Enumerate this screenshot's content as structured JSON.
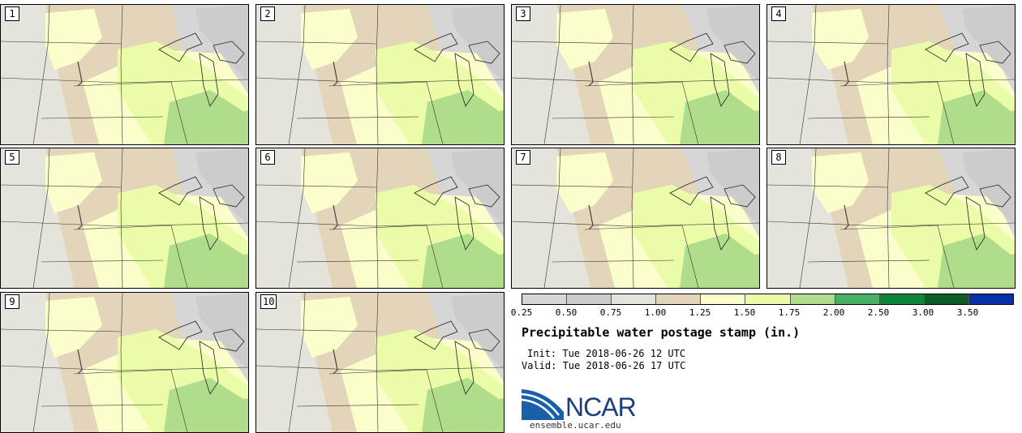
{
  "panels": [
    {
      "label": "1"
    },
    {
      "label": "2"
    },
    {
      "label": "3"
    },
    {
      "label": "4"
    },
    {
      "label": "5"
    },
    {
      "label": "6"
    },
    {
      "label": "7"
    },
    {
      "label": "8"
    },
    {
      "label": "9"
    },
    {
      "label": "10"
    }
  ],
  "legend": {
    "colors": [
      "#d6d6d6",
      "#cccccc",
      "#e4e4dc",
      "#e3d5b9",
      "#fbfdcb",
      "#eafca8",
      "#b0dd8c",
      "#47b064",
      "#0f8538",
      "#0d5b27",
      "#0732a7"
    ],
    "ticks": [
      "0.25",
      "0.50",
      "0.75",
      "1.00",
      "1.25",
      "1.50",
      "1.75",
      "2.00",
      "2.50",
      "3.00",
      "3.50"
    ]
  },
  "title": "Precipitable water postage stamp (in.)",
  "init": "Init: Tue 2018-06-26 12 UTC",
  "valid": "Valid: Tue 2018-06-26 17 UTC",
  "logo": {
    "name": "NCAR",
    "url": "ensemble.ucar.edu",
    "color": "#1b3f7a"
  }
}
